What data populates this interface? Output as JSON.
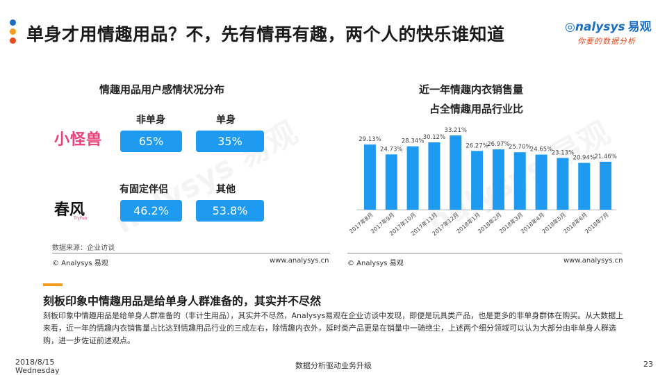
{
  "header": {
    "title": "单身才用情趣用品？不，先有情再有趣，两个人的快乐谁知道",
    "logo_name": "nalysys",
    "logo_cn": "易观",
    "logo_tagline": "你要的数据分析",
    "accent_colors": [
      "#1a6fc4",
      "#f29b1c",
      "#e8491d"
    ]
  },
  "left_panel": {
    "title": "情趣用品用户感情状况分布",
    "brand1": "小怪兽",
    "brand2": "春风",
    "brand2_en": "TryFun",
    "row1": {
      "label_a": "非单身",
      "value_a": "65%",
      "label_b": "单身",
      "value_b": "35%"
    },
    "row2": {
      "label_a": "有固定伴侣",
      "value_a": "46.2%",
      "label_b": "其他",
      "value_b": "53.8%"
    },
    "source": "数据来源：企业访谈",
    "copyright": "© Analysys 易观",
    "website": "www.analysys.cn"
  },
  "right_panel": {
    "title_line1": "近一年情趣内衣销售量",
    "title_line2": "占全情趣用品行业比",
    "copyright": "© Analysys 易观",
    "website": "www.analysys.cn"
  },
  "chart_data": {
    "type": "bar",
    "categories": [
      "2017年8月",
      "2017年9月",
      "2017年10月",
      "2017年11月",
      "2017年12月",
      "2018年1月",
      "2018年2月",
      "2018年3月",
      "2018年4月",
      "2018年5月",
      "2018年6月",
      "2018年7月"
    ],
    "values": [
      29.13,
      24.73,
      28.34,
      30.12,
      33.21,
      26.27,
      26.97,
      25.7,
      24.65,
      23.13,
      20.94,
      21.46
    ],
    "labels": [
      "29.13%",
      "24.73%",
      "28.34%",
      "30.12%",
      "33.21%",
      "26.27%",
      "26.97%",
      "25.70%",
      "24.65%",
      "23.13%",
      "20.94%",
      "21.46%"
    ],
    "title": "",
    "xlabel": "",
    "ylabel": "",
    "ylim": [
      0,
      36
    ],
    "bar_color": "#1e9bf0",
    "grid": false
  },
  "conclusion": {
    "heading": "刻板印象中情趣用品是给单身人群准备的，其实并不尽然",
    "body": "刻板印象中情趣用品是给单身人群准备的（非计生用品），其实并不尽然，Analysys易观在企业访谈中发现，即便是玩具类产品，也是更多的非单身群体在购买。从大数据上来看，近一年的情趣内衣销售量占比达到情趣用品行业的三成左右，除情趣内衣外，延时类产品更是在销量中一骑绝尘，上述两个细分领域可以认为大部分由非单身人群选购，进一步佐证前述观点。"
  },
  "footer": {
    "date": "2018/8/15",
    "weekday": "Wednesday",
    "center_text": "数据分析驱动业务升级",
    "page_number": "23"
  }
}
